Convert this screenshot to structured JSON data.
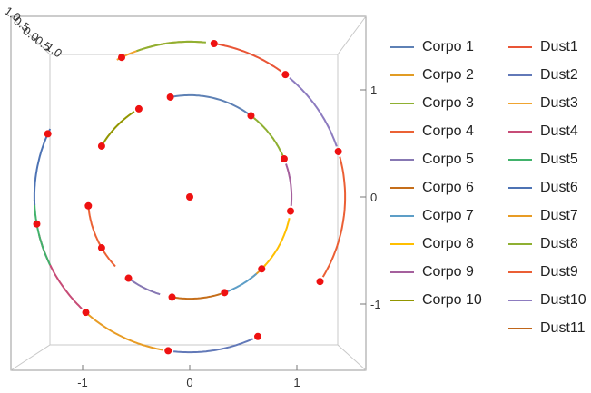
{
  "chart_data": {
    "type": "line",
    "title": "",
    "xlabel": "",
    "ylabel": "",
    "xlim": [
      -1.5,
      1.5
    ],
    "ylim": [
      -1.5,
      1.5
    ],
    "x_ticks": [
      "-1",
      "0",
      "1"
    ],
    "y_ticks": [
      "1",
      "0",
      "-1"
    ],
    "corner_tick_labels": [
      "1.0",
      "0.5",
      "0.0",
      "-0.5",
      "-1.0"
    ],
    "center_point": {
      "x": 0,
      "y": 0
    },
    "inner_ring_radius": 0.95,
    "outer_ring_radius": 1.45,
    "inner_points_deg": [
      101,
      53,
      22,
      -8,
      -45,
      -70,
      -100,
      -127,
      -150,
      -175,
      150,
      120
    ],
    "outer_points_deg": [
      81,
      52,
      17,
      -33,
      -64,
      -98,
      -132,
      -170,
      156,
      116
    ],
    "series": [
      {
        "name": "Corpo 1",
        "color": "#5E81B5",
        "ring": "inner",
        "start_deg": 101,
        "end_deg": 55
      },
      {
        "name": "Corpo 2",
        "color": "#E19C24",
        "ring": "inner",
        "start_deg": -53,
        "end_deg": -42
      },
      {
        "name": "Corpo 3",
        "color": "#8FB032",
        "ring": "inner",
        "start_deg": 51,
        "end_deg": 24
      },
      {
        "name": "Corpo 4",
        "color": "#EB6235",
        "ring": "inner",
        "start_deg": -174,
        "end_deg": -137
      },
      {
        "name": "Corpo 5",
        "color": "#8778B3",
        "ring": "inner",
        "start_deg": -126,
        "end_deg": -107
      },
      {
        "name": "Corpo 6",
        "color": "#C56E1A",
        "ring": "inner",
        "start_deg": -102,
        "end_deg": -72
      },
      {
        "name": "Corpo 7",
        "color": "#5D9EC7",
        "ring": "inner",
        "start_deg": -68,
        "end_deg": -49
      },
      {
        "name": "Corpo 8",
        "color": "#FFBF00",
        "ring": "inner",
        "start_deg": -43,
        "end_deg": -12
      },
      {
        "name": "Corpo 9",
        "color": "#A5609D",
        "ring": "inner",
        "start_deg": 19,
        "end_deg": -5
      },
      {
        "name": "Corpo 10",
        "color": "#929600",
        "ring": "inner",
        "start_deg": 148,
        "end_deg": 123
      },
      {
        "name": "Dust1",
        "color": "#E95536",
        "ring": "outer",
        "start_deg": 80,
        "end_deg": 54
      },
      {
        "name": "Dust2",
        "color": "#6279B8",
        "ring": "outer",
        "start_deg": -96,
        "end_deg": -66
      },
      {
        "name": "Dust3",
        "color": "#F0A430",
        "ring": "outer",
        "start_deg": 118,
        "end_deg": 85
      },
      {
        "name": "Dust4",
        "color": "#C74C77",
        "ring": "outer",
        "start_deg": -166,
        "end_deg": -134
      },
      {
        "name": "Dust5",
        "color": "#41B26B",
        "ring": "outer",
        "start_deg": 181,
        "end_deg": 206
      },
      {
        "name": "Dust6",
        "color": "#4D73B4",
        "ring": "outer",
        "start_deg": 154,
        "end_deg": 183
      },
      {
        "name": "Dust7",
        "color": "#E89C25",
        "ring": "outer",
        "start_deg": -131,
        "end_deg": -100
      },
      {
        "name": "Dust8",
        "color": "#8FB032",
        "ring": "outer",
        "start_deg": 110,
        "end_deg": 84
      },
      {
        "name": "Dust9",
        "color": "#EB5F35",
        "ring": "outer",
        "start_deg": 15,
        "end_deg": -31
      },
      {
        "name": "Dust10",
        "color": "#8D7CC0",
        "ring": "outer",
        "start_deg": 50,
        "end_deg": 19
      },
      {
        "name": "Dust11",
        "color": "#C0661A",
        "ring": "outer",
        "start_deg": 0,
        "end_deg": 0
      }
    ],
    "grid": false,
    "legend_position": "right"
  }
}
